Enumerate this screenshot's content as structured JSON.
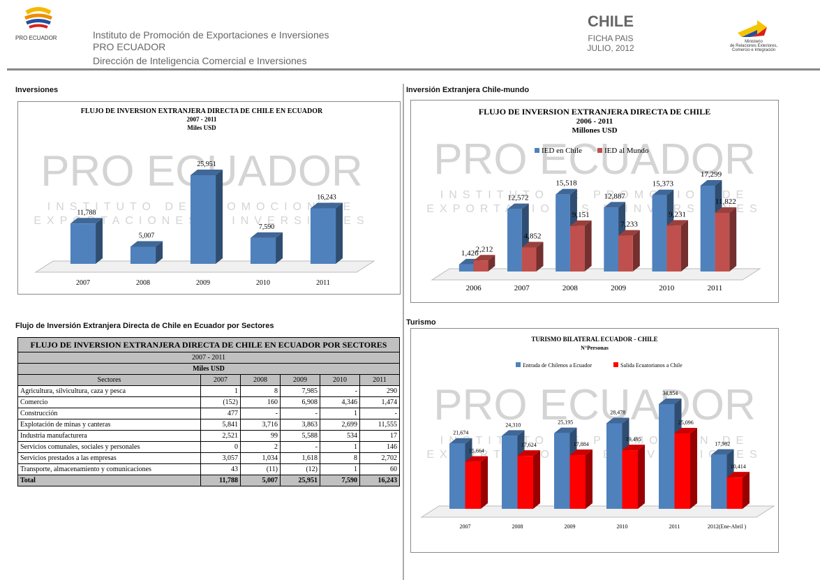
{
  "header": {
    "logo_text": "PRO ECUADOR",
    "lines": [
      "Instituto de Promoción de Exportaciones e Inversiones",
      "PRO ECUADOR",
      "Dirección de Inteligencia Comercial e Inversiones"
    ],
    "country": "CHILE",
    "doc": "FICHA PAIS",
    "date": "JULIO, 2012",
    "ministry": [
      "Ministerio",
      "de Relaciones Exteriores,",
      "Comercio e Integración"
    ]
  },
  "watermark": [
    "PRO ECUADOR",
    "INSTITUTO DE PROMOCION DE",
    "EXPORTACIONES E INVERSIONES"
  ],
  "sections": [
    "Inversiones",
    "Inversión Extranjera Chile-mundo",
    "Flujo de Inversión Extranjera Directa de Chile en Ecuador por Sectores",
    "Turismo"
  ],
  "chart_data": [
    {
      "type": "bar",
      "title": "FLUJO DE INVERSION EXTRANJERA DIRECTA DE CHILE EN ECUADOR",
      "subtitle": "2007 - 2011",
      "unit": "Miles USD",
      "categories": [
        "2007",
        "2008",
        "2009",
        "2010",
        "2011"
      ],
      "values": [
        11788,
        5007,
        25951,
        7590,
        16243
      ],
      "value_labels": [
        "11,788",
        "5,007",
        "25,951",
        "7,590",
        "16,243"
      ],
      "color": "#4f81bd"
    },
    {
      "type": "bar",
      "title": "FLUJO DE INVERSION EXTRANJERA DIRECTA DE CHILE",
      "subtitle": "2006 - 2011",
      "unit": "Millones USD",
      "categories": [
        "2006",
        "2007",
        "2008",
        "2009",
        "2010",
        "2011"
      ],
      "series": [
        {
          "name": "IED en Chile",
          "color": "#4f81bd",
          "values": [
            1426,
            12572,
            15518,
            12887,
            15373,
            17299
          ],
          "value_labels": [
            "1,426",
            "12,572",
            "15,518",
            "12,887",
            "15,373",
            "17,299"
          ]
        },
        {
          "name": "IED al Mundo",
          "color": "#c0504d",
          "values": [
            2212,
            4852,
            9151,
            7233,
            9231,
            11822
          ],
          "value_labels": [
            "2,212",
            "4,852",
            "9,151",
            "7,233",
            "9,231",
            "11,822"
          ]
        }
      ]
    },
    {
      "type": "bar",
      "title": "TURISMO BILATERAL ECUADOR - CHILE",
      "subtitle": "N°Personas",
      "categories": [
        "2007",
        "2008",
        "2009",
        "2010",
        "2011",
        "2012(Ene-Abril )"
      ],
      "series": [
        {
          "name": "Entrada de Chilenos a Ecuador",
          "color": "#4f81bd",
          "values": [
            21674,
            24310,
            25195,
            28478,
            34854,
            17982
          ],
          "value_labels": [
            "21,674",
            "24,310",
            "25,195",
            "28,478",
            "34,854",
            "17,982"
          ]
        },
        {
          "name": "Salida Ecuatorianos a Chile",
          "color": "#ff0000",
          "values": [
            15664,
            17624,
            17884,
            19495,
            25096,
            10414
          ],
          "value_labels": [
            "15,664",
            "17,624",
            "17,884",
            "19,495",
            "25,096",
            "10,414"
          ]
        }
      ]
    }
  ],
  "table": {
    "title": "FLUJO DE INVERSION EXTRANJERA DIRECTA DE CHILE EN ECUADOR POR SECTORES",
    "period": "2007 - 2011",
    "unit": "Miles USD",
    "header": [
      "Sectores",
      "2007",
      "2008",
      "2009",
      "2010",
      "2011"
    ],
    "rows": [
      [
        "Agricultura, silvicultura, caza y pesca",
        "1",
        "8",
        "7,985",
        "-",
        "290"
      ],
      [
        "Comercio",
        "(152)",
        "160",
        "6,908",
        "4,346",
        "1,474"
      ],
      [
        "Construcción",
        "477",
        "-",
        "-",
        "1",
        "-"
      ],
      [
        "Explotación de minas y canteras",
        "5,841",
        "3,716",
        "3,863",
        "2,699",
        "11,555"
      ],
      [
        "Industria manufacturera",
        "2,521",
        "99",
        "5,588",
        "534",
        "17"
      ],
      [
        "Servicios comunales, sociales y personales",
        "0",
        "2",
        "-",
        "1",
        "146"
      ],
      [
        "Servicios prestados a las empresas",
        "3,057",
        "1,034",
        "1,618",
        "8",
        "2,702"
      ],
      [
        "Transporte, almacenamiento y comunicaciones",
        "43",
        "(11)",
        "(12)",
        "1",
        "60"
      ],
      [
        "Total",
        "11,788",
        "5,007",
        "25,951",
        "7,590",
        "16,243"
      ]
    ]
  }
}
